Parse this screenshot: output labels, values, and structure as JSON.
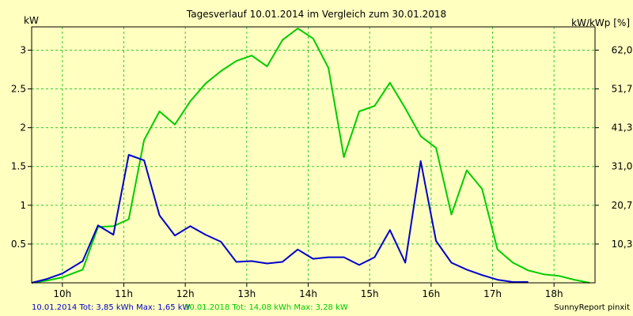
{
  "chart_data": {
    "type": "line",
    "title": "Tagesverlauf 10.01.2014 im Vergleich zum 30.01.2018",
    "ylabel_left": "kW",
    "ylabel_right": "kW/kWp [%]",
    "x_ticks": [
      "10h",
      "11h",
      "12h",
      "13h",
      "14h",
      "15h",
      "16h",
      "17h",
      "18h"
    ],
    "y_ticks_left": [
      "0.5",
      "1",
      "1.5",
      "2",
      "2.5",
      "3"
    ],
    "y_ticks_right": [
      "10,3",
      "20,7",
      "31,0",
      "41,3",
      "51,7",
      "62,0"
    ],
    "xlim": [
      9.5,
      18.667
    ],
    "ylim": [
      0,
      3.3
    ],
    "y_tick_values": [
      0.5,
      1,
      1.5,
      2,
      2.5,
      3
    ],
    "x_tick_values": [
      10,
      11,
      12,
      13,
      14,
      15,
      16,
      17,
      18
    ],
    "grid": true,
    "legend": [
      {
        "text": "10.01.2014 Tot: 3,85 kWh Max: 1,65 kW",
        "color": "#0000cc"
      },
      {
        "text": "30.01.2018 Tot: 14,08 kWh Max: 3,28 kW",
        "color": "#00cc00"
      }
    ],
    "credit": "SunnyReport pinxit",
    "series": [
      {
        "name": "10.01.2014",
        "color": "#0000cc",
        "x": [
          9.5,
          9.75,
          10.0,
          10.33,
          10.58,
          10.83,
          11.08,
          11.33,
          11.58,
          11.83,
          12.08,
          12.33,
          12.58,
          12.83,
          13.08,
          13.33,
          13.58,
          13.83,
          14.08,
          14.33,
          14.58,
          14.83,
          15.08,
          15.33,
          15.58,
          15.83,
          16.08,
          16.33,
          16.58,
          16.83,
          17.08,
          17.33,
          17.58
        ],
        "y": [
          0.0,
          0.05,
          0.12,
          0.28,
          0.74,
          0.62,
          1.65,
          1.58,
          0.87,
          0.61,
          0.73,
          0.62,
          0.53,
          0.27,
          0.28,
          0.25,
          0.27,
          0.43,
          0.31,
          0.33,
          0.33,
          0.23,
          0.33,
          0.68,
          0.26,
          1.57,
          0.54,
          0.26,
          0.17,
          0.1,
          0.04,
          0.01,
          0.01
        ]
      },
      {
        "name": "30.01.2018",
        "color": "#00cc00",
        "x": [
          9.5,
          9.75,
          10.0,
          10.33,
          10.58,
          10.83,
          11.08,
          11.33,
          11.58,
          11.83,
          12.08,
          12.33,
          12.58,
          12.83,
          13.08,
          13.33,
          13.58,
          13.83,
          14.08,
          14.33,
          14.58,
          14.83,
          15.08,
          15.33,
          15.58,
          15.83,
          16.08,
          16.33,
          16.58,
          16.83,
          17.08,
          17.33,
          17.58,
          17.83,
          18.08,
          18.33,
          18.58
        ],
        "y": [
          0.0,
          0.03,
          0.07,
          0.17,
          0.72,
          0.73,
          0.82,
          1.84,
          2.21,
          2.04,
          2.34,
          2.57,
          2.73,
          2.86,
          2.93,
          2.79,
          3.13,
          3.28,
          3.15,
          2.77,
          1.62,
          2.21,
          2.28,
          2.58,
          2.25,
          1.89,
          1.74,
          0.88,
          1.45,
          1.21,
          0.43,
          0.26,
          0.16,
          0.11,
          0.09,
          0.04,
          0.0
        ]
      }
    ]
  }
}
